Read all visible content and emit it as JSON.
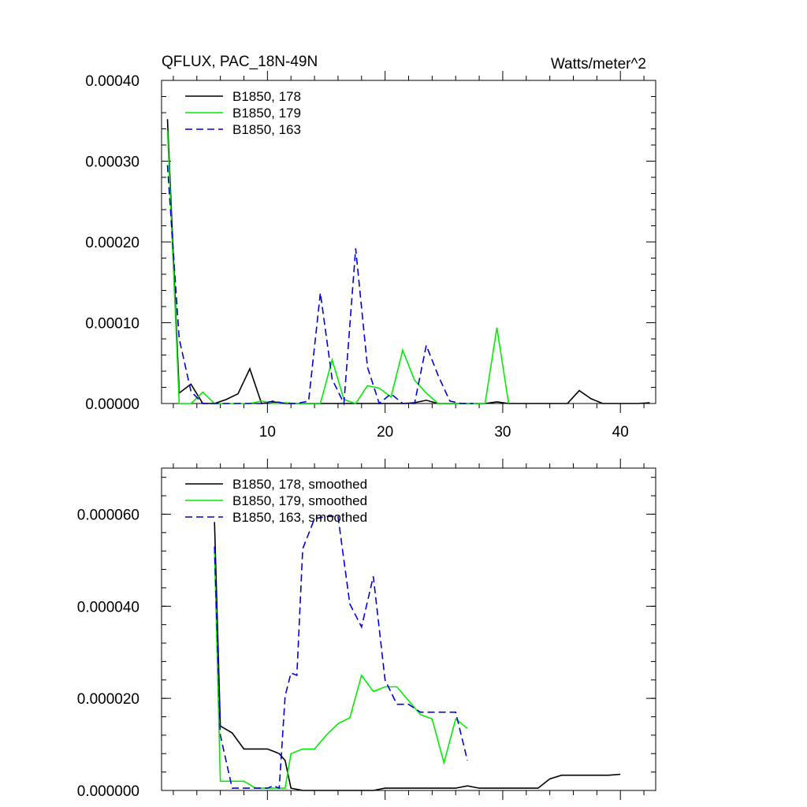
{
  "chart_data": [
    {
      "type": "line",
      "title": "QFLUX, PAC_18N-49N",
      "units": "Watts/meter^2",
      "xlim": [
        1,
        43
      ],
      "ylim": [
        0,
        0.0004
      ],
      "xticks": [
        10,
        20,
        30,
        40
      ],
      "xtick_labels": [
        "10",
        "20",
        "30",
        "40"
      ],
      "yticks": [
        0,
        0.0001,
        0.0002,
        0.0003,
        0.0004
      ],
      "ytick_labels": [
        "0.00000",
        "0.00010",
        "0.00020",
        "0.00030",
        "0.00040"
      ],
      "legend_position": "top-left",
      "series": [
        {
          "name": "B1850, 178",
          "color": "#000000",
          "dash": "solid",
          "x": [
            1.5,
            2.5,
            3.5,
            4.5,
            5.5,
            6.5,
            7.5,
            8.5,
            9.5,
            10.5,
            11.5,
            12.5,
            13.5,
            14.5,
            15.5,
            16.5,
            17.5,
            18.5,
            19.5,
            20.5,
            21.5,
            22.5,
            23.5,
            24.5,
            25.5,
            26.5,
            27.5,
            28.5,
            29.5,
            30.5,
            31.5,
            32.5,
            33.5,
            34.5,
            35.5,
            36.5,
            37.5,
            38.5,
            39.5,
            40.5,
            41.5,
            42.5
          ],
          "y": [
            0.000352,
            1.3e-05,
            2.4e-05,
            0.0,
            0.0,
            5e-06,
            1.2e-05,
            4.3e-05,
            0.0,
            2e-06,
            0.0,
            0.0,
            0.0,
            0.0,
            0.0,
            0.0,
            0.0,
            0.0,
            0.0,
            0.0,
            0.0,
            1e-06,
            4e-06,
            0.0,
            0.0,
            0.0,
            0.0,
            0.0,
            2e-06,
            0.0,
            0.0,
            0.0,
            0.0,
            0.0,
            0.0,
            1.6e-05,
            6e-06,
            0.0,
            0.0,
            0.0,
            0.0,
            1e-06
          ]
        },
        {
          "name": "B1850, 179",
          "color": "#00ee00",
          "dash": "solid",
          "x": [
            1.5,
            2.5,
            3.5,
            4.5,
            5.5,
            6.5,
            7.5,
            8.5,
            9.5,
            10.5,
            11.5,
            12.5,
            13.5,
            14.5,
            15.5,
            16.5,
            17.5,
            18.5,
            19.5,
            20.5,
            21.5,
            22.5,
            23.5,
            24.5,
            25.5,
            26.5,
            27.5,
            28.5,
            29.5,
            30.5
          ],
          "y": [
            0.000338,
            0.0,
            0.0,
            1.4e-05,
            0.0,
            0.0,
            0.0,
            0.0,
            3e-06,
            0.0,
            1e-06,
            0.0,
            0.0,
            0.0,
            5.4e-05,
            5e-06,
            0.0,
            2.2e-05,
            1.9e-05,
            8e-06,
            6.6e-05,
            2.9e-05,
            1.3e-05,
            0.0,
            0.0,
            0.0,
            0.0,
            0.0,
            9.4e-05,
            0.0
          ]
        },
        {
          "name": "B1850, 163",
          "color": "#0000dd",
          "dash": "dashed",
          "x": [
            1.5,
            2.5,
            3.5,
            4.5,
            5.5,
            6.5,
            7.5,
            8.5,
            9.5,
            10.5,
            11.5,
            12.5,
            13.5,
            14.5,
            15.5,
            16.5,
            17.5,
            18.5,
            19.5,
            20.5,
            21.5,
            22.5,
            23.5,
            24.5,
            25.5,
            26.5,
            27.5
          ],
          "y": [
            0.000295,
            8e-05,
            1.5e-05,
            0.0,
            0.0,
            0.0,
            0.0,
            0.0,
            0.0,
            3e-06,
            0.0,
            0.0,
            3e-06,
            0.000137,
            3e-05,
            0.0,
            0.000192,
            4.5e-05,
            0.0,
            1.2e-05,
            0.0,
            0.0,
            7.2e-05,
            3.5e-05,
            3e-06,
            0.0,
            0.0
          ]
        }
      ]
    },
    {
      "type": "line",
      "xlim": [
        1,
        43
      ],
      "ylim": [
        0,
        7e-05
      ],
      "xticks": [
        10,
        20,
        30,
        40
      ],
      "yticks": [
        0,
        2e-05,
        4e-05,
        6e-05
      ],
      "ytick_labels": [
        "0.000000",
        "0.000020",
        "0.000040",
        "0.000060"
      ],
      "legend_position": "top-left",
      "series": [
        {
          "name": "B1850, 178, smoothed",
          "color": "#000000",
          "dash": "solid",
          "x": [
            5.5,
            6.0,
            7.0,
            8.0,
            9.0,
            10.0,
            10.5,
            11.0,
            11.5,
            12.0,
            13.0,
            14.0,
            15.0,
            16.0,
            17.0,
            18.0,
            19.0,
            20.0,
            21.0,
            22.0,
            23.0,
            24.0,
            25.0,
            26.0,
            27.0,
            28.0,
            29.0,
            30.0,
            31.0,
            32.0,
            33.0,
            34.0,
            35.0,
            36.0,
            37.0,
            38.0,
            39.0,
            40.0
          ],
          "y": [
            5.83e-05,
            1.4e-05,
            1.25e-05,
            9e-06,
            9e-06,
            9e-06,
            8.5e-06,
            8e-06,
            6.5e-06,
            5e-07,
            0.0,
            0.0,
            0.0,
            0.0,
            0.0,
            0.0,
            0.0,
            5e-07,
            5e-07,
            5e-07,
            5e-07,
            5e-07,
            5e-07,
            5e-07,
            1e-06,
            5e-07,
            5e-07,
            5e-07,
            5e-07,
            5e-07,
            5e-07,
            2.5e-06,
            3.3e-06,
            3.3e-06,
            3.3e-06,
            3.3e-06,
            3.3e-06,
            3.5e-06
          ]
        },
        {
          "name": "B1850, 179, smoothed",
          "color": "#00ee00",
          "dash": "solid",
          "x": [
            5.5,
            6.0,
            7.0,
            8.0,
            9.0,
            10.0,
            11.0,
            11.5,
            12.0,
            13.0,
            14.0,
            15.0,
            16.0,
            17.0,
            18.0,
            19.0,
            20.0,
            21.0,
            22.0,
            23.0,
            24.0,
            25.0,
            26.0,
            27.0
          ],
          "y": [
            5.2e-05,
            2e-06,
            2e-06,
            2e-06,
            5e-07,
            5e-07,
            5e-07,
            5e-07,
            8e-06,
            9e-06,
            9e-06,
            1.2e-05,
            1.45e-05,
            1.58e-05,
            2.5e-05,
            2.15e-05,
            2.25e-05,
            2.25e-05,
            1.95e-05,
            1.65e-05,
            1.55e-05,
            6e-06,
            1.55e-05,
            1.35e-05
          ]
        },
        {
          "name": "B1850, 163, smoothed",
          "color": "#0000dd",
          "dash": "dashed",
          "x": [
            5.5,
            6.0,
            7.0,
            8.0,
            9.0,
            10.0,
            10.5,
            11.0,
            11.5,
            12.0,
            12.5,
            13.0,
            14.0,
            15.0,
            16.0,
            17.0,
            18.0,
            19.0,
            20.0,
            21.0,
            22.0,
            23.0,
            24.0,
            25.0,
            26.0,
            27.0
          ],
          "y": [
            5.3e-05,
            1.2e-05,
            5e-07,
            5e-07,
            5e-07,
            5e-07,
            1e-06,
            5e-07,
            2.05e-05,
            2.55e-05,
            2.5e-05,
            5.25e-05,
            5.9e-05,
            5.95e-05,
            5.95e-05,
            4.05e-05,
            3.55e-05,
            4.65e-05,
            2.4e-05,
            1.87e-05,
            1.87e-05,
            1.7e-05,
            1.7e-05,
            1.7e-05,
            1.7e-05,
            6.5e-06
          ]
        }
      ]
    }
  ]
}
